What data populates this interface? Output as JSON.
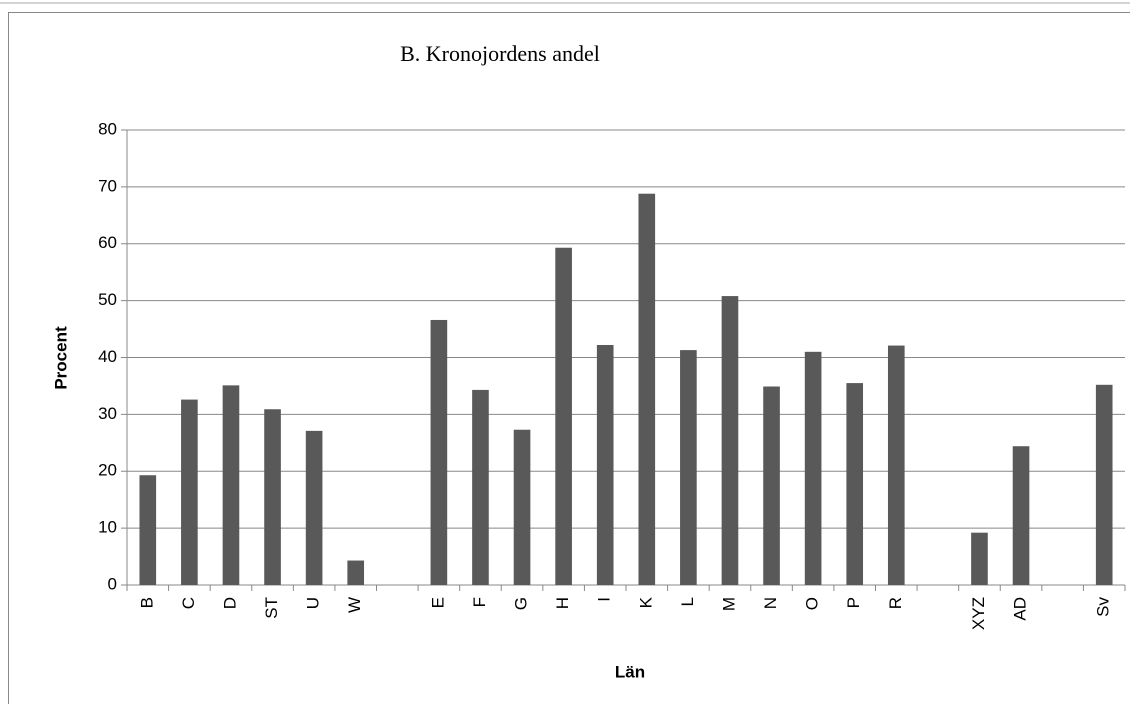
{
  "chart_data": {
    "type": "bar",
    "title": "B. Kronojordens andel",
    "x_label": "Län",
    "y_label": "Procent",
    "categories": [
      "B",
      "C",
      "D",
      "ST",
      "U",
      "W",
      null,
      "E",
      "F",
      "G",
      "H",
      "I",
      "K",
      "L",
      "M",
      "N",
      "O",
      "P",
      "R",
      null,
      "XYZ",
      "AD",
      null,
      "Sv"
    ],
    "values": [
      19.3,
      32.6,
      35.1,
      30.9,
      27.1,
      4.3,
      null,
      46.6,
      34.3,
      27.3,
      59.3,
      42.2,
      68.8,
      41.3,
      50.8,
      34.9,
      41.0,
      35.5,
      42.1,
      null,
      9.2,
      24.4,
      null,
      35.2
    ],
    "color": "#595959",
    "ylim": [
      0,
      80
    ],
    "yticks": [
      0,
      10,
      20,
      30,
      40,
      50,
      60,
      70,
      80
    ],
    "grid": true
  }
}
